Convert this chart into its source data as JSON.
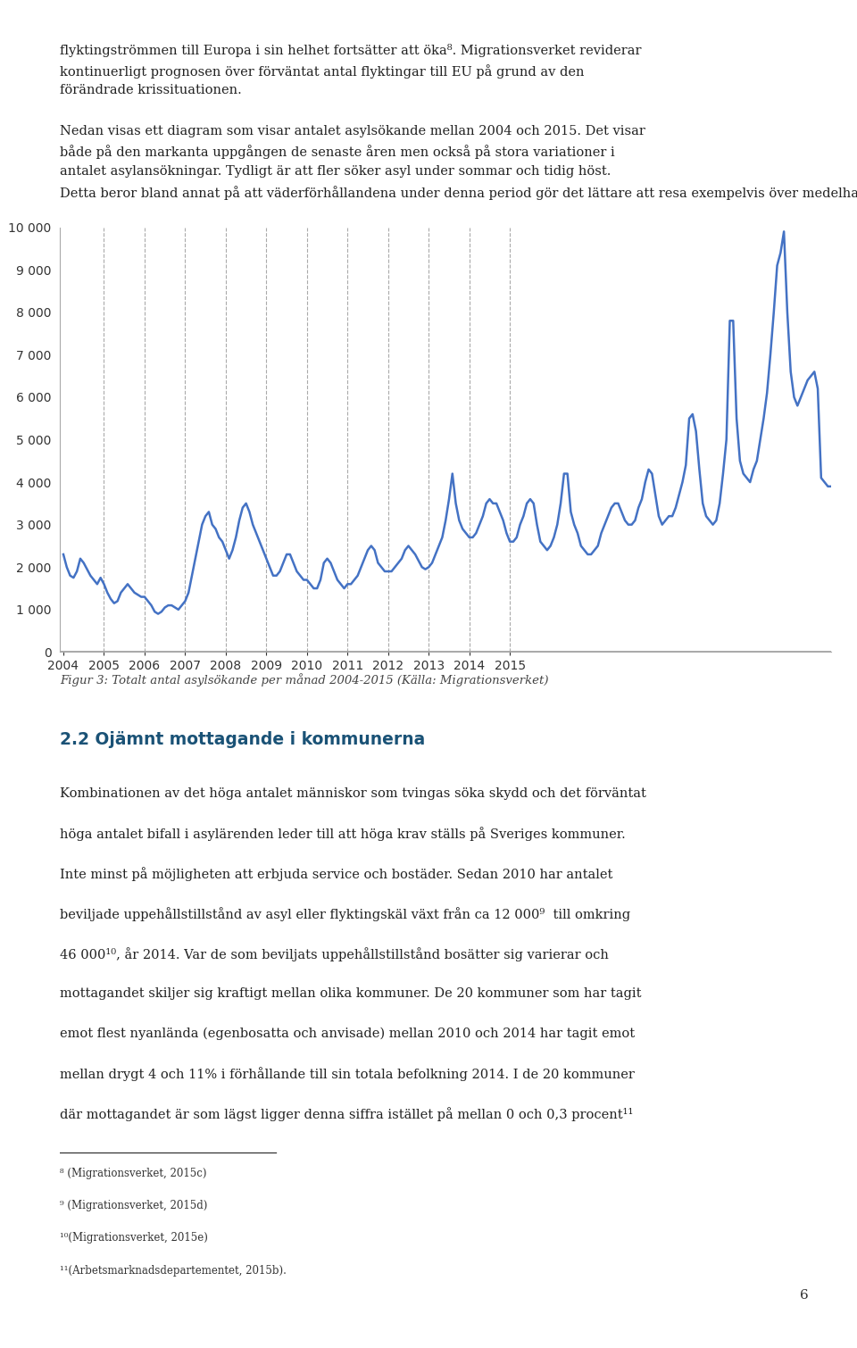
{
  "caption": "Figur 3: Totalt antal asylsökande per månad 2004-2015 (Källa: Migrationsverket)",
  "line_color": "#4472C4",
  "line_width": 1.8,
  "background_color": "#ffffff",
  "ylim": [
    0,
    10000
  ],
  "yticks": [
    0,
    1000,
    2000,
    3000,
    4000,
    5000,
    6000,
    7000,
    8000,
    9000,
    10000
  ],
  "grid_color": "#aaaaaa",
  "monthly_values": [
    2300,
    2000,
    1800,
    1750,
    1900,
    2200,
    2100,
    1950,
    1800,
    1700,
    1600,
    1750,
    1600,
    1400,
    1250,
    1150,
    1200,
    1400,
    1500,
    1600,
    1500,
    1400,
    1350,
    1300,
    1300,
    1200,
    1100,
    950,
    900,
    950,
    1050,
    1100,
    1100,
    1050,
    1000,
    1100,
    1200,
    1400,
    1800,
    2200,
    2600,
    3000,
    3200,
    3300,
    3000,
    2900,
    2700,
    2600,
    2400,
    2200,
    2400,
    2700,
    3100,
    3400,
    3500,
    3300,
    3000,
    2800,
    2600,
    2400,
    2200,
    2000,
    1800,
    1800,
    1900,
    2100,
    2300,
    2300,
    2100,
    1900,
    1800,
    1700,
    1700,
    1600,
    1500,
    1500,
    1700,
    2100,
    2200,
    2100,
    1900,
    1700,
    1600,
    1500,
    1600,
    1600,
    1700,
    1800,
    2000,
    2200,
    2400,
    2500,
    2400,
    2100,
    2000,
    1900,
    1900,
    1900,
    2000,
    2100,
    2200,
    2400,
    2500,
    2400,
    2300,
    2150,
    2000,
    1950,
    2000,
    2100,
    2300,
    2500,
    2700,
    3100,
    3600,
    4200,
    3500,
    3100,
    2900,
    2800,
    2700,
    2700,
    2800,
    3000,
    3200,
    3500,
    3600,
    3500,
    3500,
    3300,
    3100,
    2800,
    2600,
    2600,
    2700,
    3000,
    3200,
    3500,
    3600,
    3500,
    3000,
    2600,
    2500,
    2400,
    2500,
    2700,
    3000,
    3500,
    4200,
    4200,
    3300,
    3000,
    2800,
    2500,
    2400,
    2300,
    2300,
    2400,
    2500,
    2800,
    3000,
    3200,
    3400,
    3500,
    3500,
    3300,
    3100,
    3000,
    3000,
    3100,
    3400,
    3600,
    4000,
    4300,
    4200,
    3700,
    3200,
    3000,
    3100,
    3200,
    3200,
    3400,
    3700,
    4000,
    4400,
    5500,
    5600,
    5200,
    4300,
    3500,
    3200,
    3100,
    3000,
    3100,
    3500,
    4200,
    5000,
    7800,
    7800,
    5500,
    4500,
    4200,
    4100,
    4000,
    4300,
    4500,
    5000,
    5500,
    6100,
    7000,
    8000,
    9100,
    9400,
    9900,
    8000,
    6600,
    6000,
    5800,
    6000,
    6200,
    6400,
    6500,
    6600,
    6200,
    4100,
    4000,
    3900,
    3900
  ],
  "year_labels": [
    "2004",
    "2005",
    "2006",
    "2007",
    "2008",
    "2009",
    "2010",
    "2011",
    "2012",
    "2013",
    "2014",
    "2015"
  ],
  "dashed_line_positions": [
    12,
    24,
    36,
    48,
    60,
    72,
    84,
    96,
    108,
    120,
    132
  ],
  "top_para": [
    "flyktingströmmen till Europa i sin helhet fortsätter att öka⁸. Migrationsverket reviderar",
    "kontinuerligt prognosen över förväntat antal flyktingar till EU på grund av den",
    "förändrade krissituationen.",
    "",
    "Nedan visas ett diagram som visar antalet asylsökande mellan 2004 och 2015. Det visar",
    "både på den markanta uppgången de senaste åren men också på stora variationer i",
    "antalet asylansökningar. Tydligt är att fler söker asyl under sommar och tidig höst.",
    "Detta beror bland annat på att väderförhållandena under denna period gör det lättare att resa exempelvis över medelhavet."
  ],
  "section_heading": "2.2 Ojämnt mottagande i kommunerna",
  "bottom_para": [
    "Kombinationen av det höga antalet människor som tvingas söka skydd och det förväntat",
    "höga antalet bifall i asylärenden leder till att höga krav ställs på Sveriges kommuner.",
    "Inte minst på möjligheten att erbjuda service och bostäder. Sedan 2010 har antalet",
    "beviljade uppehållstillstånd av asyl eller flyktingskäl växt från ca 12 000⁹  till omkring",
    "46 000¹⁰, år 2014. Var de som beviljats uppehållstillstånd bosätter sig varierar och",
    "mottagandet skiljer sig kraftigt mellan olika kommuner. De 20 kommuner som har tagit",
    "emot flest nyanlända (egenbosatta och anvisade) mellan 2010 och 2014 har tagit emot",
    "mellan drygt 4 och 11% i förhållande till sin totala befolkning 2014. I de 20 kommuner",
    "där mottagandet är som lägst ligger denna siffra istället på mellan 0 och 0,3 procent¹¹"
  ],
  "footnotes": [
    "⁸ (Migrationsverket, 2015c)",
    "⁹ (Migrationsverket, 2015d)",
    "¹⁰(Migrationsverket, 2015e)",
    "¹¹(Arbetsmarknadsdepartementet, 2015b)."
  ],
  "page_number": "6"
}
